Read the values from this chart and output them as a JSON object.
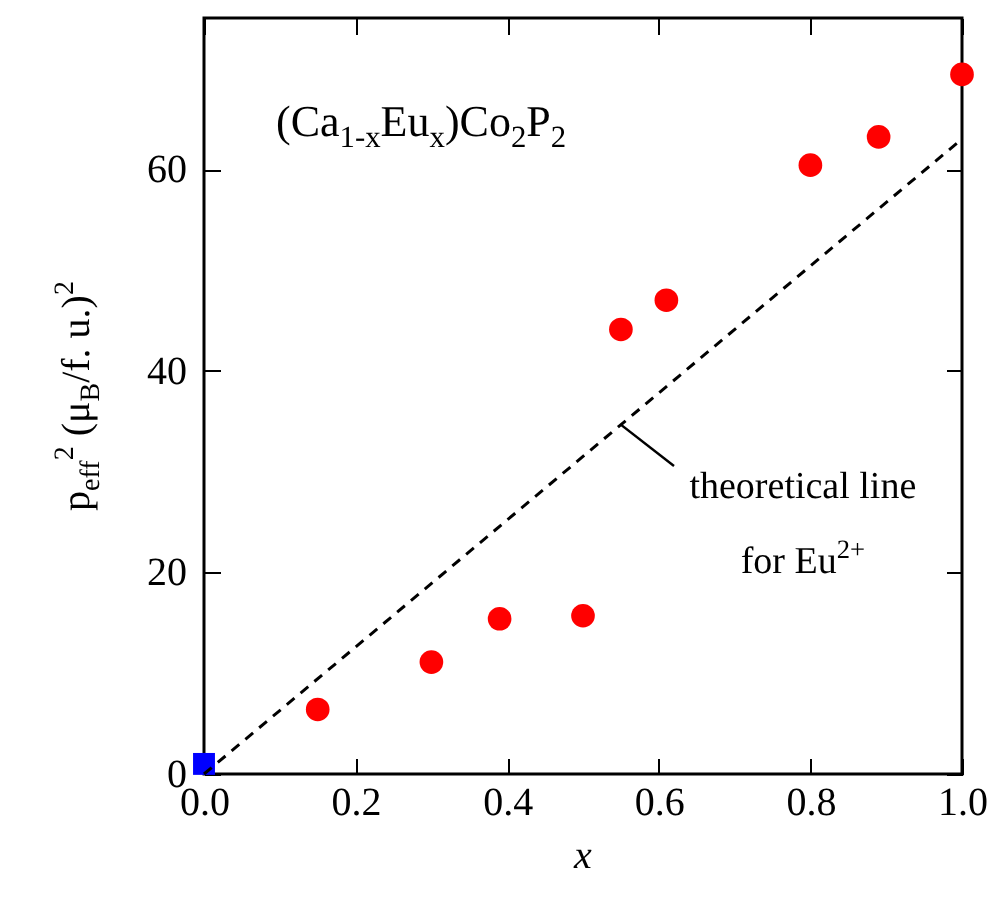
{
  "chart_data": {
    "type": "scatter",
    "xlabel": "x",
    "ylabel": "p$_{eff}$$^{2}$ (μ$_{B}$/f. u.)$^{2}$",
    "xlim": [
      0,
      1
    ],
    "ylim": [
      0,
      75
    ],
    "xticks": [
      {
        "value": 0,
        "label": "0.0"
      },
      0.2,
      0.4,
      0.6,
      0.8,
      {
        "value": 1,
        "label": "1.0"
      }
    ],
    "yticks": [
      0,
      20,
      40,
      60
    ],
    "series": [
      {
        "color": "#ff0000",
        "marker": "circle",
        "x": [
          0.15,
          0.3,
          0.39,
          0.5,
          0.55,
          0.61,
          0.8,
          0.89,
          1.0
        ],
        "values": [
          6.4,
          11.1,
          15.4,
          15.7,
          44.1,
          47.0,
          60.4,
          63.2,
          69.4
        ]
      },
      {
        "color": "#0000ff",
        "marker": "square",
        "x": [
          0
        ],
        "values": [
          1.0
        ]
      },
      {
        "type": "line",
        "color": "#000000",
        "line_style": "dashed",
        "x": [
          0,
          1
        ],
        "values": [
          0,
          63
        ]
      }
    ],
    "annotations": [
      "(Ca$_{1-x}$Eu$_{x}$)Co$_{2}$P$_{2}$",
      {
        "text": "theoretical line for Eu$^{2+}$",
        "x": 0.55,
        "y": 34.7
      }
    ]
  }
}
